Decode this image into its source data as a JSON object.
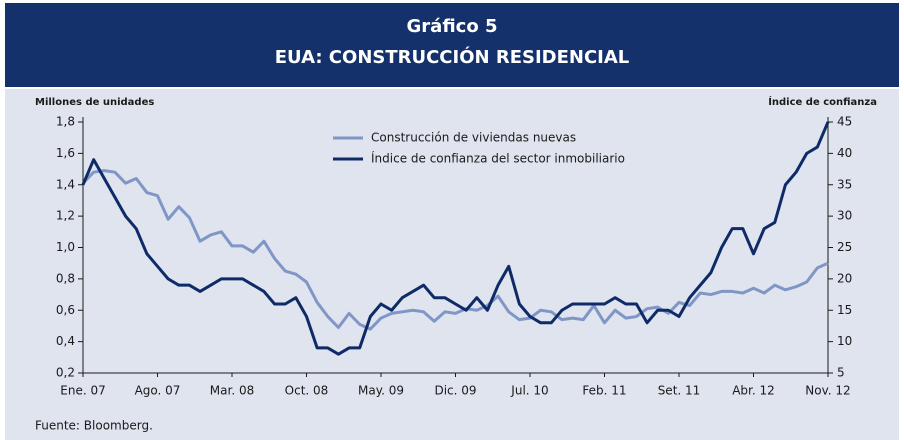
{
  "chart_data": {
    "type": "line",
    "title": "Gráfico 5",
    "subtitle": "EUA: CONSTRUCCIÓN RESIDENCIAL",
    "y_label": "Millones de unidades",
    "y2_label": "Índice de confianza",
    "source": "Fuente: Bloomberg.",
    "legend": "top",
    "categories": [
      "Ene. 07",
      null,
      null,
      null,
      null,
      null,
      null,
      "Ago. 07",
      null,
      null,
      null,
      null,
      null,
      null,
      "Mar. 08",
      null,
      null,
      null,
      null,
      null,
      null,
      "Oct. 08",
      null,
      null,
      null,
      null,
      null,
      null,
      "May. 09",
      null,
      null,
      null,
      null,
      null,
      null,
      "Dic. 09",
      null,
      null,
      null,
      null,
      null,
      null,
      "Jul. 10",
      null,
      null,
      null,
      null,
      null,
      null,
      "Feb. 11",
      null,
      null,
      null,
      null,
      null,
      null,
      "Set. 11",
      null,
      null,
      null,
      null,
      null,
      null,
      "Abr. 12",
      null,
      null,
      null,
      null,
      null,
      null,
      "Nov. 12"
    ],
    "ylim": [
      0.2,
      1.8
    ],
    "yticks": [
      {
        "value": 0.2,
        "label": "0,2"
      },
      {
        "value": 0.4,
        "label": "0,4"
      },
      {
        "value": 0.6,
        "label": "0,6"
      },
      {
        "value": 0.8,
        "label": "0,8"
      },
      {
        "value": 1.0,
        "label": "1,0"
      },
      {
        "value": 1.2,
        "label": "1,2"
      },
      {
        "value": 1.4,
        "label": "1,4"
      },
      {
        "value": 1.6,
        "label": "1,6"
      },
      {
        "value": 1.8,
        "label": "1,8"
      }
    ],
    "y2lim": [
      5,
      45
    ],
    "y2ticks": [
      5,
      10,
      15,
      20,
      25,
      30,
      35,
      40,
      45
    ],
    "series": [
      {
        "name": "Construcción de viviendas nuevas",
        "color": "#7f96c6",
        "axis": "y",
        "values": [
          1.41,
          1.48,
          1.49,
          1.48,
          1.41,
          1.44,
          1.35,
          1.33,
          1.18,
          1.26,
          1.19,
          1.04,
          1.08,
          1.1,
          1.01,
          1.01,
          0.97,
          1.04,
          0.93,
          0.85,
          0.83,
          0.78,
          0.65,
          0.56,
          0.49,
          0.58,
          0.51,
          0.48,
          0.55,
          0.58,
          0.59,
          0.6,
          0.59,
          0.53,
          0.59,
          0.58,
          0.61,
          0.6,
          0.63,
          0.69,
          0.59,
          0.54,
          0.55,
          0.6,
          0.59,
          0.54,
          0.55,
          0.54,
          0.63,
          0.52,
          0.6,
          0.55,
          0.56,
          0.61,
          0.62,
          0.58,
          0.65,
          0.63,
          0.71,
          0.7,
          0.72,
          0.72,
          0.71,
          0.74,
          0.71,
          0.76,
          0.73,
          0.75,
          0.78,
          0.87,
          0.9
        ]
      },
      {
        "name": "Índice de confianza del sector inmobiliario",
        "color": "#0e2b68",
        "axis": "y2",
        "values": [
          35,
          39,
          36,
          33,
          30,
          28,
          24,
          22,
          20,
          19,
          19,
          18,
          19,
          20,
          20,
          20,
          19,
          18,
          16,
          16,
          17,
          14,
          9,
          9,
          8,
          9,
          9,
          14,
          16,
          15,
          17,
          18,
          19,
          17,
          17,
          16,
          15,
          17,
          15,
          19,
          22,
          16,
          14,
          13,
          13,
          15,
          16,
          16,
          16,
          16,
          17,
          16,
          16,
          13,
          15,
          15,
          14,
          17,
          19,
          21,
          25,
          28,
          28,
          24,
          28,
          29,
          35,
          37,
          40,
          41,
          45
        ]
      }
    ]
  }
}
